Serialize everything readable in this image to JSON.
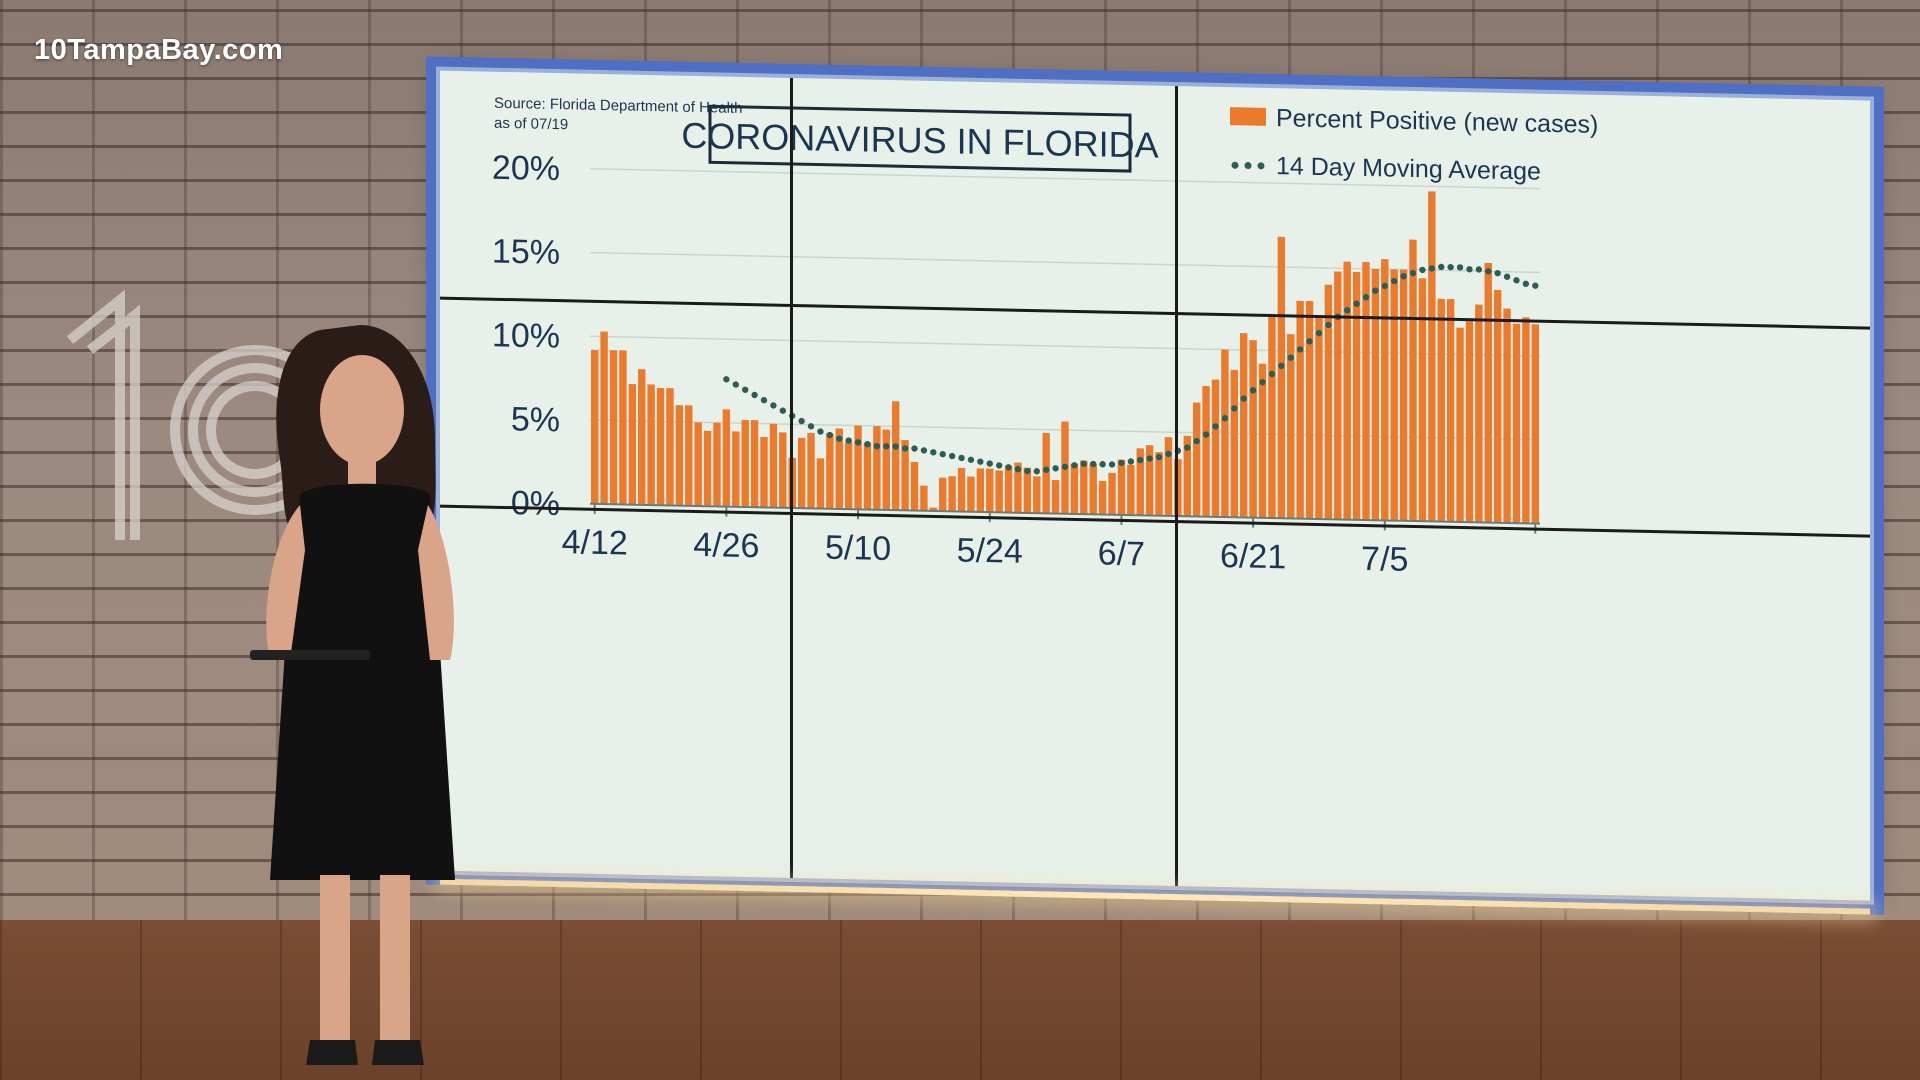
{
  "watermark": "10TampaBay.com",
  "chart_data": {
    "type": "bar",
    "title": "CORONAVIRUS IN FLORIDA",
    "source": "Source: Florida Department of Health",
    "as_of": "as of 07/19",
    "y_ticks": [
      "0%",
      "5%",
      "10%",
      "15%",
      "20%"
    ],
    "ylim": [
      0,
      20
    ],
    "x_ticks": [
      {
        "label": "4/12",
        "index": 0
      },
      {
        "label": "4/26",
        "index": 14
      },
      {
        "label": "5/10",
        "index": 28
      },
      {
        "label": "5/24",
        "index": 42
      },
      {
        "label": "6/7",
        "index": 56
      },
      {
        "label": "6/21",
        "index": 70
      },
      {
        "label": "7/5",
        "index": 84
      }
    ],
    "legend": [
      "Percent Positive (new cases)",
      "14 Day Moving Average"
    ],
    "colors": {
      "bars": "#ec7a2c",
      "average": "#2e5d55",
      "text": "#1c3550",
      "screen": "#e7f1ea"
    },
    "series": [
      {
        "name": "Percent Positive (new cases)",
        "values": [
          9.2,
          10.3,
          9.2,
          9.2,
          7.2,
          8.1,
          7.2,
          7.0,
          7.0,
          6.0,
          6.0,
          5.0,
          4.5,
          5.0,
          5.8,
          4.5,
          5.2,
          5.2,
          4.2,
          5.0,
          4.5,
          3.0,
          4.2,
          4.5,
          3.0,
          4.5,
          4.8,
          4.0,
          5.0,
          4.0,
          5.0,
          4.8,
          6.5,
          4.2,
          2.9,
          1.5,
          0.2,
          2.0,
          2.1,
          2.6,
          2.1,
          2.6,
          2.6,
          2.5,
          2.8,
          3.0,
          2.7,
          2.2,
          4.8,
          2.0,
          5.5,
          3.0,
          3.2,
          3.0,
          2.0,
          2.5,
          3.3,
          3.0,
          4.0,
          4.2,
          3.8,
          4.7,
          3.4,
          4.8,
          6.8,
          7.8,
          8.2,
          10.0,
          8.8,
          11.0,
          10.6,
          9.2,
          12.0,
          16.8,
          11.0,
          13.0,
          13.0,
          12.0,
          14.0,
          14.8,
          15.4,
          14.8,
          15.4,
          15.0,
          15.6,
          15.0,
          15.0,
          16.8,
          14.5,
          19.7,
          13.3,
          13.3,
          11.6,
          12.0,
          13.0,
          15.5,
          13.9,
          12.8,
          11.9,
          12.3,
          11.9
        ]
      },
      {
        "name": "14 Day Moving Average",
        "values": [
          null,
          null,
          null,
          null,
          null,
          null,
          null,
          null,
          null,
          null,
          null,
          null,
          null,
          null,
          7.6,
          7.3,
          7.0,
          6.7,
          6.4,
          6.1,
          5.8,
          5.5,
          5.2,
          4.9,
          4.6,
          4.4,
          4.2,
          4.1,
          4.0,
          3.9,
          3.8,
          3.8,
          3.8,
          3.7,
          3.7,
          3.6,
          3.5,
          3.4,
          3.3,
          3.2,
          3.1,
          3.0,
          2.9,
          2.8,
          2.7,
          2.6,
          2.5,
          2.5,
          2.6,
          2.7,
          2.8,
          2.9,
          3.0,
          3.0,
          3.0,
          3.0,
          3.1,
          3.2,
          3.3,
          3.4,
          3.5,
          3.7,
          3.9,
          4.1,
          4.5,
          4.9,
          5.4,
          5.9,
          6.5,
          7.1,
          7.6,
          8.1,
          8.6,
          9.1,
          9.6,
          10.1,
          10.6,
          11.1,
          11.6,
          12.1,
          12.5,
          12.9,
          13.3,
          13.7,
          14.0,
          14.3,
          14.6,
          14.8,
          15.0,
          15.1,
          15.2,
          15.2,
          15.2,
          15.1,
          15.1,
          15.0,
          14.9,
          14.7,
          14.5,
          14.3,
          14.2
        ]
      }
    ]
  }
}
